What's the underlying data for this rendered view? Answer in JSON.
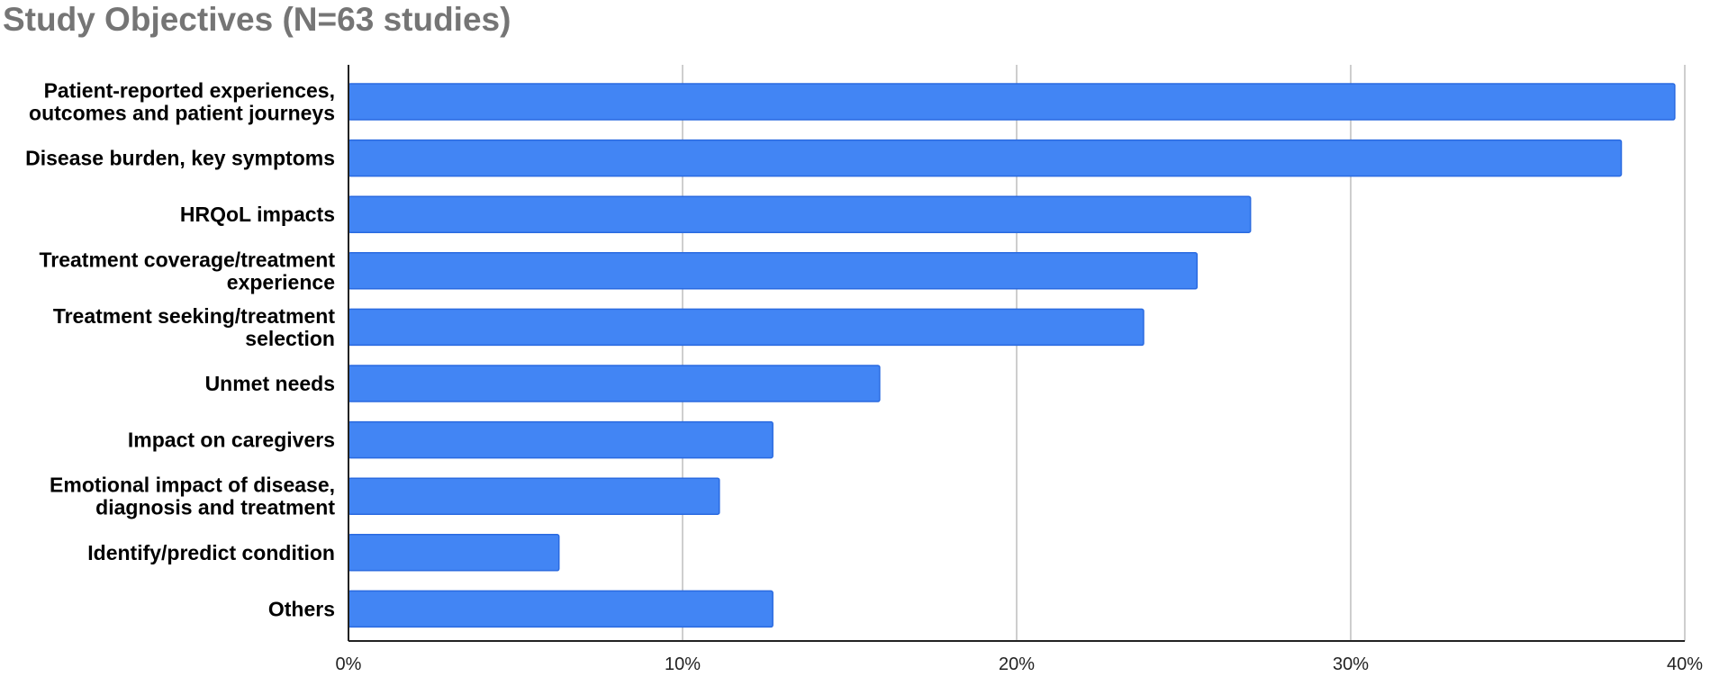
{
  "chart_data": {
    "type": "bar",
    "orientation": "horizontal",
    "title": "Study Objectives (N=63 studies)",
    "xlabel": "",
    "ylabel": "",
    "categories": [
      [
        "Patient-reported experiences,",
        "outcomes and patient journeys"
      ],
      [
        "Disease burden, key symptoms"
      ],
      [
        "HRQoL impacts"
      ],
      [
        "Treatment coverage/treatment",
        "experience"
      ],
      [
        "Treatment seeking/treatment",
        "selection"
      ],
      [
        "Unmet needs"
      ],
      [
        "Impact on caregivers"
      ],
      [
        "Emotional impact of disease,",
        "diagnosis and treatment"
      ],
      [
        "Identify/predict condition"
      ],
      [
        "Others"
      ]
    ],
    "values": [
      39.7,
      38.1,
      27.0,
      25.4,
      23.8,
      15.9,
      12.7,
      11.1,
      6.3,
      12.7
    ],
    "xlim": [
      0,
      40
    ],
    "xticks": [
      0,
      10,
      20,
      30,
      40
    ],
    "xtick_labels": [
      "0%",
      "10%",
      "20%",
      "30%",
      "40%"
    ],
    "grid": true,
    "legend": "none",
    "bar_color": "#4285f4",
    "bar_border_color": "#2a6ae0"
  }
}
